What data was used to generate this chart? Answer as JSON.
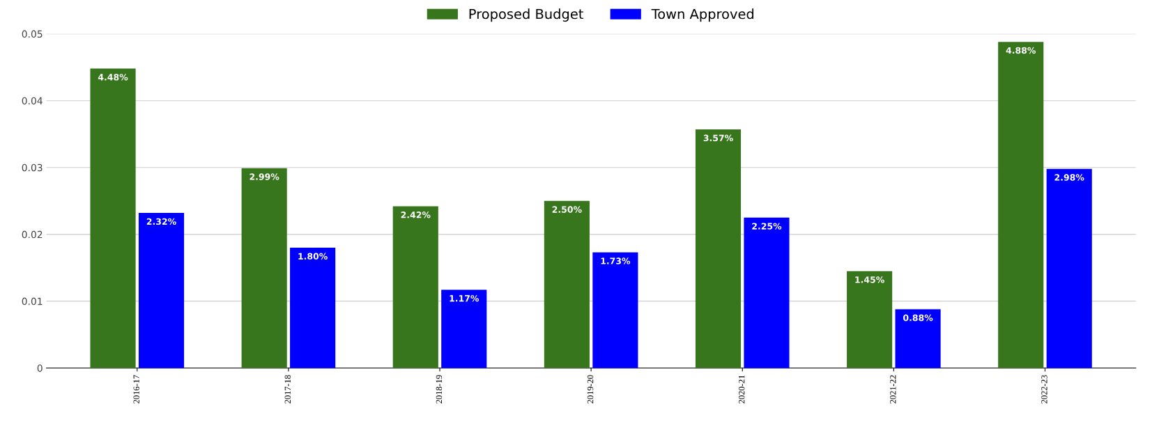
{
  "chart_data": {
    "type": "bar",
    "categories": [
      "2016-17",
      "2017-18",
      "2018-19",
      "2019-20",
      "2020-21",
      "2021-22",
      "2022-23"
    ],
    "series": [
      {
        "name": "Proposed Budget",
        "color": "#38761d",
        "values": [
          0.0448,
          0.0299,
          0.0242,
          0.025,
          0.0357,
          0.0145,
          0.0488
        ],
        "value_labels": [
          "4.48%",
          "2.99%",
          "2.42%",
          "2.50%",
          "3.57%",
          "1.45%",
          "4.88%"
        ]
      },
      {
        "name": "Town Approved",
        "color": "#0000ff",
        "values": [
          0.0232,
          0.018,
          0.0117,
          0.0173,
          0.0225,
          0.0088,
          0.0298
        ],
        "value_labels": [
          "2.32%",
          "1.80%",
          "1.17%",
          "1.73%",
          "2.25%",
          "0.88%",
          "2.98%"
        ]
      }
    ],
    "ylim": [
      0,
      0.05
    ],
    "yticks": [
      0,
      0.01,
      0.02,
      0.03,
      0.04,
      0.05
    ],
    "grid": "y",
    "legend": "top"
  }
}
